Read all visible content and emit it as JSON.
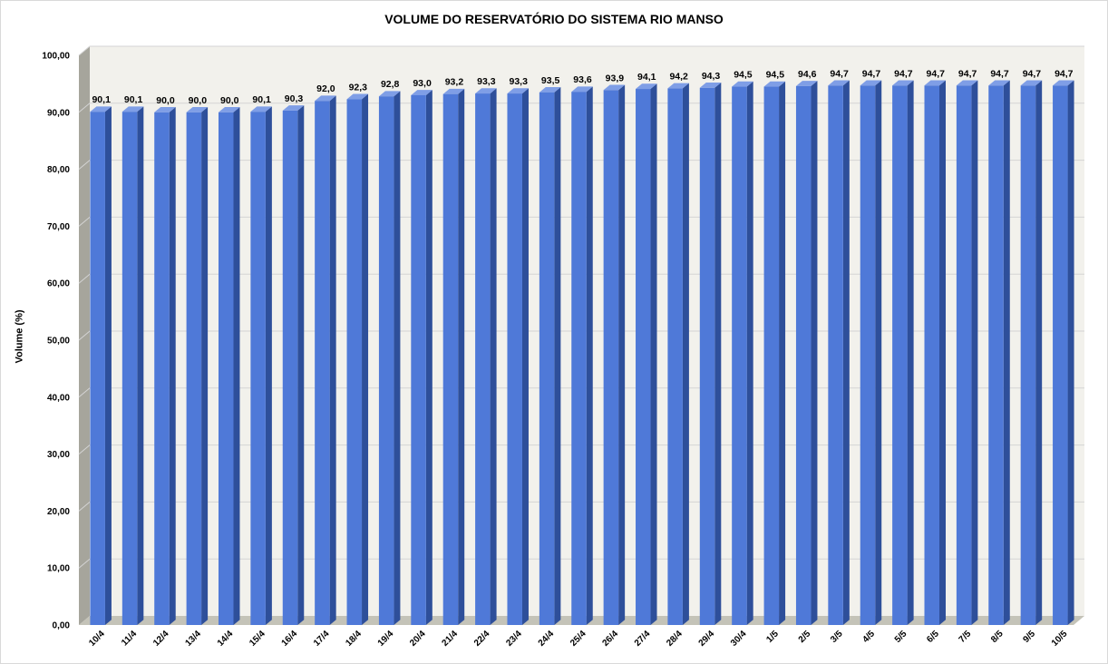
{
  "chart_data": {
    "type": "bar",
    "title": "VOLUME DO RESERVATÓRIO DO SISTEMA RIO MANSO",
    "xlabel": "",
    "ylabel": "Volume (%)",
    "ylim": [
      0,
      100
    ],
    "y_ticks": [
      "0,00",
      "10,00",
      "20,00",
      "30,00",
      "40,00",
      "50,00",
      "60,00",
      "70,00",
      "80,00",
      "90,00",
      "100,00"
    ],
    "grid": true,
    "legend": "none",
    "bar_color": "#4f79d8",
    "categories": [
      "10/4",
      "11/4",
      "12/4",
      "13/4",
      "14/4",
      "15/4",
      "16/4",
      "17/4",
      "18/4",
      "19/4",
      "20/4",
      "21/4",
      "22/4",
      "23/4",
      "24/4",
      "25/4",
      "26/4",
      "27/4",
      "28/4",
      "29/4",
      "30/4",
      "1/5",
      "2/5",
      "3/5",
      "4/5",
      "5/5",
      "6/5",
      "7/5",
      "8/5",
      "9/5",
      "10/5"
    ],
    "values": [
      90.1,
      90.1,
      90.0,
      90.0,
      90.0,
      90.1,
      90.3,
      92.0,
      92.3,
      92.8,
      93.0,
      93.2,
      93.3,
      93.3,
      93.5,
      93.6,
      93.9,
      94.1,
      94.2,
      94.3,
      94.5,
      94.5,
      94.6,
      94.7,
      94.7,
      94.7,
      94.7,
      94.7,
      94.7,
      94.7,
      94.7
    ],
    "data_labels": [
      "90,1",
      "90,1",
      "90,0",
      "90,0",
      "90,0",
      "90,1",
      "90,3",
      "92,0",
      "92,3",
      "92,8",
      "93,0",
      "93,2",
      "93,3",
      "93,3",
      "93,5",
      "93,6",
      "93,9",
      "94,1",
      "94,2",
      "94,3",
      "94,5",
      "94,5",
      "94,6",
      "94,7",
      "94,7",
      "94,7",
      "94,7",
      "94,7",
      "94,7",
      "94,7",
      "94,7"
    ]
  }
}
